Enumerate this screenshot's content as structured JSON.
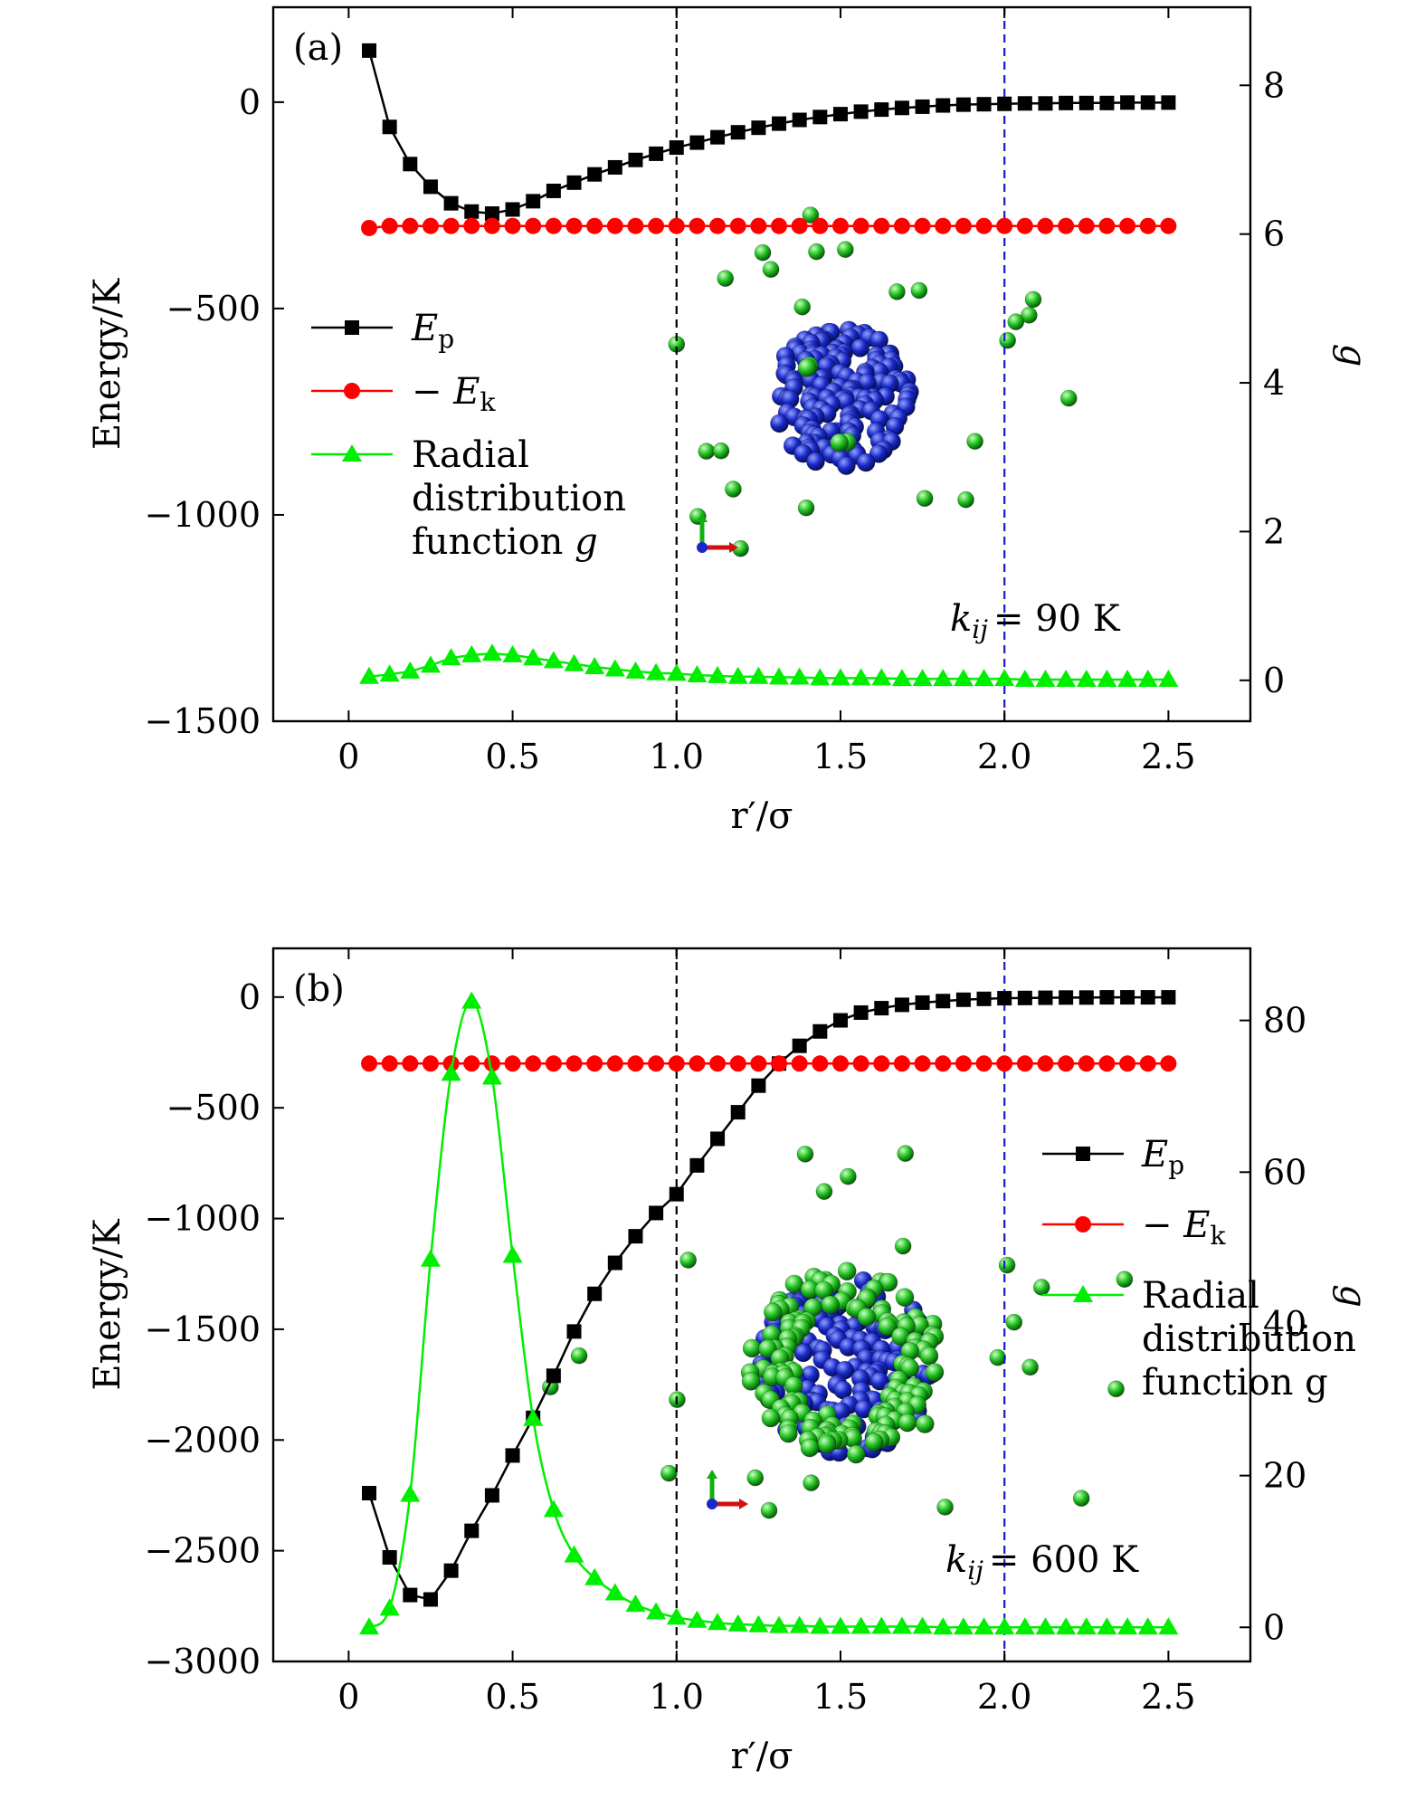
{
  "colors": {
    "ep": "#000000",
    "ek": "#ff0000",
    "g": "#00ee00",
    "guide1": "#000000",
    "guide2": "#1a1acc",
    "core": "#1f2fd0",
    "shell": "#22c322"
  },
  "chart_data": [
    {
      "type": "line",
      "panel_label": "(a)",
      "xlabel": "r′/σ",
      "ylabel_left": "Energy/K",
      "ylabel_right": "g",
      "xlim": [
        -0.23,
        2.75
      ],
      "ylim_left": [
        -1500,
        230
      ],
      "ylim_right": [
        -0.55,
        9.05
      ],
      "xticks": [
        0,
        0.5,
        1.0,
        1.5,
        2.0,
        2.5
      ],
      "xtick_labels": [
        "0",
        "0.5",
        "1.0",
        "1.5",
        "2.0",
        "2.5"
      ],
      "yticks_left": [
        0,
        -500,
        -1000,
        -1500
      ],
      "ytick_labels_left": [
        "0",
        "−500",
        "−1000",
        "−1500"
      ],
      "yticks_right": [
        0,
        2,
        4,
        6,
        8
      ],
      "ytick_labels_right": [
        "0",
        "2",
        "4",
        "6",
        "8"
      ],
      "vlines": [
        1.0,
        2.0
      ],
      "annotation": "= 90 K",
      "annotation_symbol": "k",
      "annotation_subscript": "ij",
      "legend_position": "left-middle",
      "legend": [
        {
          "series": "Ep",
          "label": "E",
          "subscript": "p",
          "prefix": ""
        },
        {
          "series": "Ek",
          "label": "E",
          "subscript": "k",
          "prefix": "−"
        },
        {
          "series": "g",
          "lines": [
            "Radial",
            "distribution",
            "function g"
          ]
        }
      ],
      "x": [
        0.0625,
        0.125,
        0.1875,
        0.25,
        0.3125,
        0.375,
        0.4375,
        0.5,
        0.5625,
        0.625,
        0.6875,
        0.75,
        0.8125,
        0.875,
        0.9375,
        1.0,
        1.0625,
        1.125,
        1.1875,
        1.25,
        1.3125,
        1.375,
        1.4375,
        1.5,
        1.5625,
        1.625,
        1.6875,
        1.75,
        1.8125,
        1.875,
        1.9375,
        2.0,
        2.0625,
        2.125,
        2.1875,
        2.25,
        2.3125,
        2.375,
        2.4375,
        2.5
      ],
      "series": [
        {
          "name": "Ep",
          "axis": "left",
          "marker": "square",
          "values": [
            125,
            -60,
            -150,
            -205,
            -245,
            -265,
            -270,
            -260,
            -240,
            -215,
            -195,
            -175,
            -158,
            -140,
            -125,
            -110,
            -98,
            -85,
            -73,
            -62,
            -52,
            -43,
            -36,
            -29,
            -23,
            -18,
            -14,
            -11,
            -8,
            -6,
            -5,
            -4,
            -3,
            -3,
            -2,
            -2,
            -2,
            -1,
            -1,
            -1
          ]
        },
        {
          "name": "-Ek",
          "axis": "left",
          "marker": "circle",
          "values": [
            -305,
            -300,
            -300,
            -300,
            -300,
            -300,
            -300,
            -300,
            -300,
            -300,
            -300,
            -300,
            -300,
            -300,
            -300,
            -300,
            -300,
            -300,
            -300,
            -300,
            -300,
            -300,
            -300,
            -300,
            -300,
            -300,
            -300,
            -300,
            -300,
            -300,
            -300,
            -300,
            -300,
            -300,
            -300,
            -300,
            -300,
            -300,
            -300,
            -300
          ]
        },
        {
          "name": "g",
          "axis": "right",
          "marker": "triangle",
          "values": [
            0.05,
            0.08,
            0.12,
            0.2,
            0.3,
            0.34,
            0.36,
            0.34,
            0.3,
            0.26,
            0.22,
            0.18,
            0.15,
            0.12,
            0.1,
            0.09,
            0.07,
            0.06,
            0.05,
            0.05,
            0.04,
            0.04,
            0.03,
            0.03,
            0.03,
            0.03,
            0.02,
            0.02,
            0.02,
            0.02,
            0.02,
            0.02,
            0.01,
            0.01,
            0.01,
            0.01,
            0.01,
            0.01,
            0.01,
            0.01
          ]
        }
      ]
    },
    {
      "type": "line",
      "panel_label": "(b)",
      "xlabel": "r′/σ",
      "ylabel_left": "Energy/K",
      "ylabel_right": "g",
      "xlim": [
        -0.23,
        2.75
      ],
      "ylim_left": [
        -3000,
        220
      ],
      "ylim_right": [
        -4.5,
        89.5
      ],
      "xticks": [
        0,
        0.5,
        1.0,
        1.5,
        2.0,
        2.5
      ],
      "xtick_labels": [
        "0",
        "0.5",
        "1.0",
        "1.5",
        "2.0",
        "2.5"
      ],
      "yticks_left": [
        0,
        -500,
        -1000,
        -1500,
        -2000,
        -2500,
        -3000
      ],
      "ytick_labels_left": [
        "0",
        "−500",
        "−1000",
        "−1500",
        "−2000",
        "−2500",
        "−3000"
      ],
      "yticks_right": [
        0,
        20,
        40,
        60,
        80
      ],
      "ytick_labels_right": [
        "0",
        "20",
        "40",
        "60",
        "80"
      ],
      "vlines": [
        1.0,
        2.0
      ],
      "annotation": "= 600 K",
      "annotation_symbol": "k",
      "annotation_subscript": "ij",
      "legend_position": "right-middle",
      "legend": [
        {
          "series": "Ep",
          "label": "E",
          "subscript": "p",
          "prefix": ""
        },
        {
          "series": "Ek",
          "label": "E",
          "subscript": "k",
          "prefix": "−"
        },
        {
          "series": "g",
          "lines": [
            "Radial",
            "distribution",
            "function g"
          ]
        }
      ],
      "x": [
        0.0625,
        0.125,
        0.1875,
        0.25,
        0.3125,
        0.375,
        0.4375,
        0.5,
        0.5625,
        0.625,
        0.6875,
        0.75,
        0.8125,
        0.875,
        0.9375,
        1.0,
        1.0625,
        1.125,
        1.1875,
        1.25,
        1.3125,
        1.375,
        1.4375,
        1.5,
        1.5625,
        1.625,
        1.6875,
        1.75,
        1.8125,
        1.875,
        1.9375,
        2.0,
        2.0625,
        2.125,
        2.1875,
        2.25,
        2.3125,
        2.375,
        2.4375,
        2.5
      ],
      "series": [
        {
          "name": "Ep",
          "axis": "left",
          "marker": "square",
          "values": [
            -2240,
            -2530,
            -2700,
            -2720,
            -2590,
            -2410,
            -2250,
            -2070,
            -1900,
            -1710,
            -1510,
            -1340,
            -1200,
            -1080,
            -975,
            -890,
            -760,
            -640,
            -520,
            -400,
            -300,
            -220,
            -155,
            -105,
            -70,
            -50,
            -35,
            -25,
            -18,
            -12,
            -8,
            -5,
            -4,
            -3,
            -2,
            -2,
            -1,
            -1,
            -1,
            -1
          ]
        },
        {
          "name": "-Ek",
          "axis": "left",
          "marker": "circle",
          "values": [
            -300,
            -300,
            -300,
            -300,
            -300,
            -300,
            -300,
            -300,
            -300,
            -300,
            -300,
            -300,
            -300,
            -300,
            -300,
            -300,
            -300,
            -300,
            -300,
            -300,
            -300,
            -300,
            -300,
            -300,
            -300,
            -300,
            -300,
            -300,
            -300,
            -300,
            -300,
            -300,
            -300,
            -300,
            -300,
            -300,
            -300,
            -300,
            -300,
            -300
          ]
        },
        {
          "name": "g",
          "axis": "right",
          "marker": "triangle",
          "values": [
            0,
            2.5,
            17.5,
            48.5,
            73,
            82.5,
            72.5,
            49,
            27.5,
            15.5,
            9.5,
            6.5,
            4.5,
            3,
            2,
            1.3,
            0.9,
            0.6,
            0.4,
            0.3,
            0.2,
            0.2,
            0.1,
            0.1,
            0.1,
            0.1,
            0.1,
            0.1,
            0,
            0,
            0,
            0,
            0,
            0,
            0,
            0,
            0,
            0,
            0,
            0
          ]
        }
      ]
    }
  ]
}
